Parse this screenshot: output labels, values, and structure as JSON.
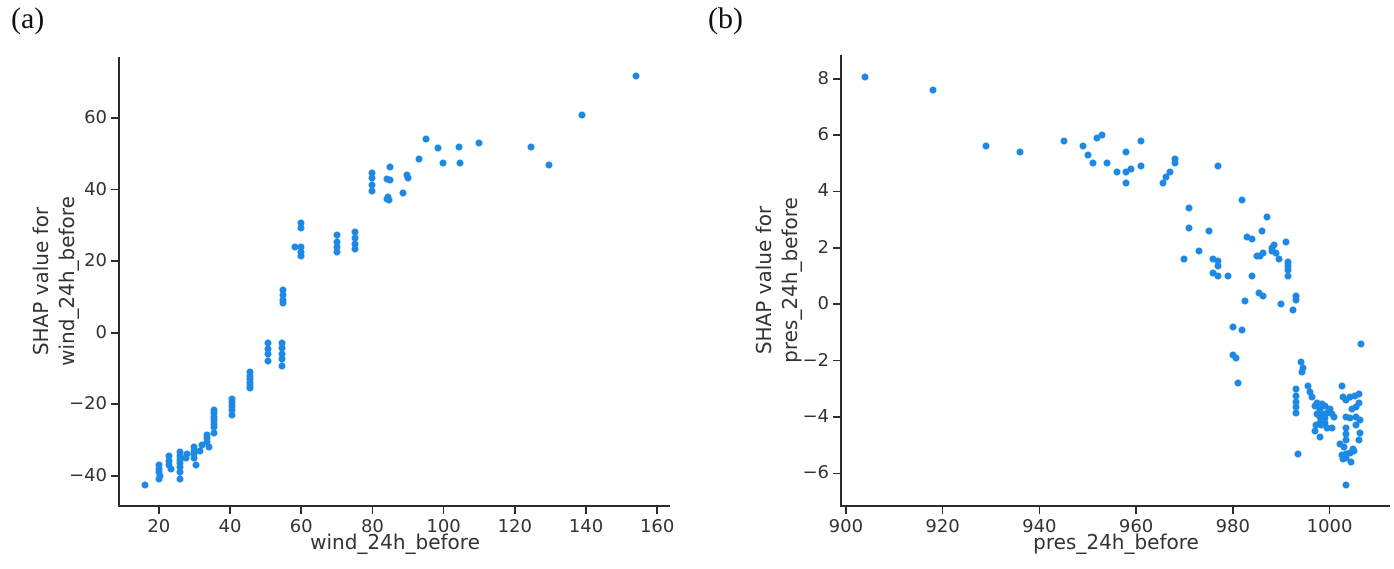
{
  "page": {
    "background": "#ffffff"
  },
  "chart_data": [
    {
      "type": "scatter",
      "panel_label": "(a)",
      "xlabel": "wind_24h_before",
      "ylabel": "SHAP value for\nwind_24h_before",
      "xticks": [
        20,
        40,
        60,
        80,
        100,
        120,
        140,
        160
      ],
      "yticks": [
        -40,
        -20,
        0,
        20,
        40,
        60
      ],
      "xlim": [
        9.1,
        163.6
      ],
      "ylim": [
        -48.2,
        77.1
      ],
      "grid": false,
      "legend": "none",
      "marker_color": "#1e88e5",
      "axis_color": "#2b2b2b",
      "points": [
        [
          16,
          -42.5
        ],
        [
          20,
          -37
        ],
        [
          20,
          -38
        ],
        [
          20,
          -39
        ],
        [
          20.3,
          -40
        ],
        [
          20,
          -41
        ],
        [
          23,
          -34.5
        ],
        [
          23,
          -36
        ],
        [
          23,
          -37
        ],
        [
          23.5,
          -38
        ],
        [
          26,
          -33.5
        ],
        [
          26,
          -34.5
        ],
        [
          26,
          -35.5
        ],
        [
          26,
          -36.5
        ],
        [
          26,
          -37.5
        ],
        [
          26,
          -39
        ],
        [
          26,
          -41
        ],
        [
          27.7,
          -35
        ],
        [
          28,
          -34
        ],
        [
          30,
          -32
        ],
        [
          30,
          -33
        ],
        [
          30,
          -34
        ],
        [
          30,
          -35
        ],
        [
          30.5,
          -37
        ],
        [
          31.6,
          -33
        ],
        [
          32,
          -31.5
        ],
        [
          33.5,
          -28.5
        ],
        [
          33.5,
          -29.5
        ],
        [
          33.5,
          -30.5
        ],
        [
          34,
          -32
        ],
        [
          35.6,
          -21.5
        ],
        [
          35.6,
          -22.5
        ],
        [
          35.6,
          -23.5
        ],
        [
          35.6,
          -24.5
        ],
        [
          35.6,
          -25.5
        ],
        [
          35.6,
          -26.5
        ],
        [
          35.6,
          -28
        ],
        [
          40.5,
          -18.5
        ],
        [
          40.5,
          -19.5
        ],
        [
          40.5,
          -20.5
        ],
        [
          40.5,
          -21.5
        ],
        [
          40.5,
          -23
        ],
        [
          45.7,
          -11
        ],
        [
          45.7,
          -12
        ],
        [
          45.7,
          -13
        ],
        [
          45.7,
          -14
        ],
        [
          45.7,
          -15
        ],
        [
          45.7,
          -15.6
        ],
        [
          50.8,
          -3
        ],
        [
          50.8,
          -4.5
        ],
        [
          50.8,
          -6
        ],
        [
          50.8,
          -8
        ],
        [
          54.6,
          -3
        ],
        [
          54.6,
          -4.4
        ],
        [
          54.6,
          -5.9
        ],
        [
          54.6,
          -7.4
        ],
        [
          54.6,
          -9.2
        ],
        [
          55,
          11.9
        ],
        [
          55,
          10.5
        ],
        [
          55,
          9.1
        ],
        [
          55,
          8.2
        ],
        [
          58.3,
          23.9
        ],
        [
          60,
          30.7
        ],
        [
          60,
          29.2
        ],
        [
          60,
          23.9
        ],
        [
          60,
          22.6
        ],
        [
          60,
          21.4
        ],
        [
          70,
          27.3
        ],
        [
          70,
          25.4
        ],
        [
          70,
          23.9
        ],
        [
          70,
          22.6
        ],
        [
          75,
          28.2
        ],
        [
          75,
          26.4
        ],
        [
          75,
          24.9
        ],
        [
          75,
          23.5
        ],
        [
          80,
          44.7
        ],
        [
          80,
          43.2
        ],
        [
          80,
          41.2
        ],
        [
          80,
          39.7
        ],
        [
          84,
          43.1
        ],
        [
          85,
          46.4
        ],
        [
          85,
          42.7
        ],
        [
          84.5,
          38
        ],
        [
          84.2,
          37.5
        ],
        [
          84.8,
          37.1
        ],
        [
          88.5,
          39
        ],
        [
          89.7,
          44.1
        ],
        [
          90.1,
          43.2
        ],
        [
          93,
          48.7
        ],
        [
          95,
          54.3
        ],
        [
          98.4,
          51.7
        ],
        [
          99.8,
          47.5
        ],
        [
          104.4,
          51.8
        ],
        [
          104.5,
          47.5
        ],
        [
          110,
          53
        ],
        [
          124.5,
          52
        ],
        [
          129.5,
          47
        ],
        [
          139,
          61
        ],
        [
          154,
          71.8
        ]
      ]
    },
    {
      "type": "scatter",
      "panel_label": "(b)",
      "xlabel": "pres_24h_before",
      "ylabel": "SHAP value for\npres_24h_before",
      "xticks": [
        900,
        920,
        940,
        960,
        980,
        1000
      ],
      "yticks": [
        -6,
        -4,
        -2,
        0,
        2,
        4,
        6,
        8
      ],
      "xlim": [
        899.2,
        1012.5
      ],
      "ylim": [
        -7.12,
        8.84
      ],
      "grid": false,
      "legend": "none",
      "marker_color": "#1e88e5",
      "axis_color": "#2b2b2b",
      "points": [
        [
          904,
          8.05
        ],
        [
          918,
          7.6
        ],
        [
          929,
          5.6
        ],
        [
          936,
          5.4
        ],
        [
          945,
          5.8
        ],
        [
          949,
          5.6
        ],
        [
          950,
          5.3
        ],
        [
          951,
          5.0
        ],
        [
          952,
          5.9
        ],
        [
          953,
          6.0
        ],
        [
          954,
          5.0
        ],
        [
          956,
          4.7
        ],
        [
          958,
          5.4
        ],
        [
          958,
          4.7
        ],
        [
          959,
          4.8
        ],
        [
          958,
          4.3
        ],
        [
          961,
          5.8
        ],
        [
          961,
          4.9
        ],
        [
          965.5,
          4.3
        ],
        [
          966.2,
          4.5
        ],
        [
          967,
          4.7
        ],
        [
          968,
          5.0
        ],
        [
          968,
          5.15
        ],
        [
          971,
          3.4
        ],
        [
          971,
          2.7
        ],
        [
          975,
          2.6
        ],
        [
          977,
          4.9
        ],
        [
          970,
          1.6
        ],
        [
          973,
          1.9
        ],
        [
          976,
          1.6
        ],
        [
          977,
          1.55
        ],
        [
          977,
          1.35
        ],
        [
          976,
          1.1
        ],
        [
          977,
          1.0
        ],
        [
          982,
          3.7
        ],
        [
          983,
          2.4
        ],
        [
          984,
          2.3
        ],
        [
          986,
          2.6
        ],
        [
          987,
          3.1
        ],
        [
          985,
          1.7
        ],
        [
          985.6,
          1.72
        ],
        [
          986.2,
          1.8
        ],
        [
          979,
          1.0
        ],
        [
          984,
          1.0
        ],
        [
          982.5,
          0.1
        ],
        [
          985.5,
          0.4
        ],
        [
          986.2,
          0.3
        ],
        [
          980,
          -0.8
        ],
        [
          982,
          -0.9
        ],
        [
          980,
          -1.8
        ],
        [
          980.6,
          -1.9
        ],
        [
          981,
          -2.8
        ],
        [
          988,
          2.0
        ],
        [
          988.5,
          2.1
        ],
        [
          988.2,
          1.9
        ],
        [
          989,
          1.8
        ],
        [
          989.5,
          1.6
        ],
        [
          991,
          2.2
        ],
        [
          991.5,
          1.5
        ],
        [
          991.5,
          1.35
        ],
        [
          991.5,
          1.2
        ],
        [
          991.5,
          1.0
        ],
        [
          990,
          0.0
        ],
        [
          993,
          0.3
        ],
        [
          993,
          0.15
        ],
        [
          992.5,
          -0.2
        ],
        [
          994,
          -2.05
        ],
        [
          994.5,
          -2.25
        ],
        [
          994.3,
          -2.4
        ],
        [
          993,
          -3.0
        ],
        [
          993,
          -3.25
        ],
        [
          993,
          -3.45
        ],
        [
          993,
          -3.65
        ],
        [
          993,
          -3.85
        ],
        [
          995.5,
          -2.9
        ],
        [
          996,
          -3.1
        ],
        [
          996.4,
          -3.3
        ],
        [
          997,
          -3.6
        ],
        [
          997.5,
          -3.5
        ],
        [
          998,
          -3.7
        ],
        [
          998.5,
          -3.55
        ],
        [
          999,
          -3.6
        ],
        [
          997.5,
          -3.9
        ],
        [
          998,
          -4.0
        ],
        [
          998.5,
          -3.9
        ],
        [
          999,
          -4.05
        ],
        [
          999.5,
          -3.85
        ],
        [
          1000,
          -3.7
        ],
        [
          1000.5,
          -3.9
        ],
        [
          999,
          -4.2
        ],
        [
          998,
          -4.2
        ],
        [
          997.3,
          -4.3
        ],
        [
          998.3,
          -4.3
        ],
        [
          999.5,
          -4.4
        ],
        [
          1000.5,
          -4.4
        ],
        [
          997,
          -4.5
        ],
        [
          998,
          -4.7
        ],
        [
          1002.5,
          -2.9
        ],
        [
          1002.7,
          -3.3
        ],
        [
          1003.5,
          -3.4
        ],
        [
          1004.3,
          -3.3
        ],
        [
          1005.3,
          -3.25
        ],
        [
          1006.1,
          -3.2
        ],
        [
          1004.6,
          -3.7
        ],
        [
          1005.5,
          -3.65
        ],
        [
          1006,
          -3.5
        ],
        [
          1001,
          -4.0
        ],
        [
          1003.4,
          -4.0
        ],
        [
          1004.3,
          -4.05
        ],
        [
          1005.5,
          -4.0
        ],
        [
          1006.3,
          -4.1
        ],
        [
          1003.5,
          -4.4
        ],
        [
          1003.5,
          -4.6
        ],
        [
          1003.5,
          -4.8
        ],
        [
          1005.5,
          -4.3
        ],
        [
          1006.4,
          -4.55
        ],
        [
          1006,
          -4.8
        ],
        [
          1002.1,
          -4.95
        ],
        [
          1003,
          -5.05
        ],
        [
          1004.8,
          -5.15
        ],
        [
          1002.5,
          -5.35
        ],
        [
          1003.3,
          -5.3
        ],
        [
          1004.2,
          -5.27
        ],
        [
          1005,
          -5.2
        ],
        [
          1003.5,
          -5.45
        ],
        [
          1002.8,
          -5.5
        ],
        [
          1004.5,
          -5.6
        ],
        [
          993.5,
          -5.3
        ],
        [
          1003.5,
          -6.4
        ],
        [
          1006.5,
          -1.4
        ]
      ]
    }
  ]
}
